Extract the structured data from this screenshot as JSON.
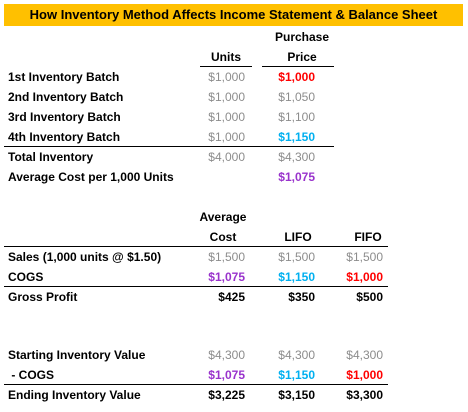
{
  "title": "How Inventory Method Affects Income Statement & Balance Sheet",
  "colors": {
    "banner": "#ffc000",
    "red": "#ff0000",
    "blue": "#00b0f0",
    "purple": "#9933cc",
    "gray": "#8c8c8c"
  },
  "top_table": {
    "header_units": "Units",
    "header_purchase_1": "Purchase",
    "header_purchase_2": "Price",
    "rows": [
      {
        "label": "1st Inventory Batch",
        "units": "$1,000",
        "price": "$1,000"
      },
      {
        "label": "2nd Inventory Batch",
        "units": "$1,000",
        "price": "$1,050"
      },
      {
        "label": "3rd Inventory Batch",
        "units": "$1,000",
        "price": "$1,100"
      },
      {
        "label": "4th Inventory Batch",
        "units": "$1,000",
        "price": "$1,150"
      }
    ],
    "total_label": "Total Inventory",
    "total_units": "$4,000",
    "total_price": "$4,300",
    "avg_label": "Average Cost per 1,000 Units",
    "avg_price": "$1,075"
  },
  "income_table": {
    "header_avg_1": "Average",
    "header_avg_2": "Cost",
    "header_lifo": "LIFO",
    "header_fifo": "FIFO",
    "rows": [
      {
        "label": "Sales (1,000 units @ $1.50)",
        "avg": "$1,500",
        "lifo": "$1,500",
        "fifo": "$1,500"
      },
      {
        "label": "COGS",
        "avg": "$1,075",
        "lifo": "$1,150",
        "fifo": "$1,000"
      }
    ],
    "gross_label": "Gross Profit",
    "gross_avg": "$425",
    "gross_lifo": "$350",
    "gross_fifo": "$500"
  },
  "balance_table": {
    "rows": [
      {
        "label": "Starting Inventory Value",
        "avg": "$4,300",
        "lifo": "$4,300",
        "fifo": "$4,300"
      },
      {
        "label": " - COGS",
        "avg": "$1,075",
        "lifo": "$1,150",
        "fifo": "$1,000"
      }
    ],
    "ending_label": "Ending Inventory Value",
    "ending_avg": "$3,225",
    "ending_lifo": "$3,150",
    "ending_fifo": "$3,300"
  }
}
